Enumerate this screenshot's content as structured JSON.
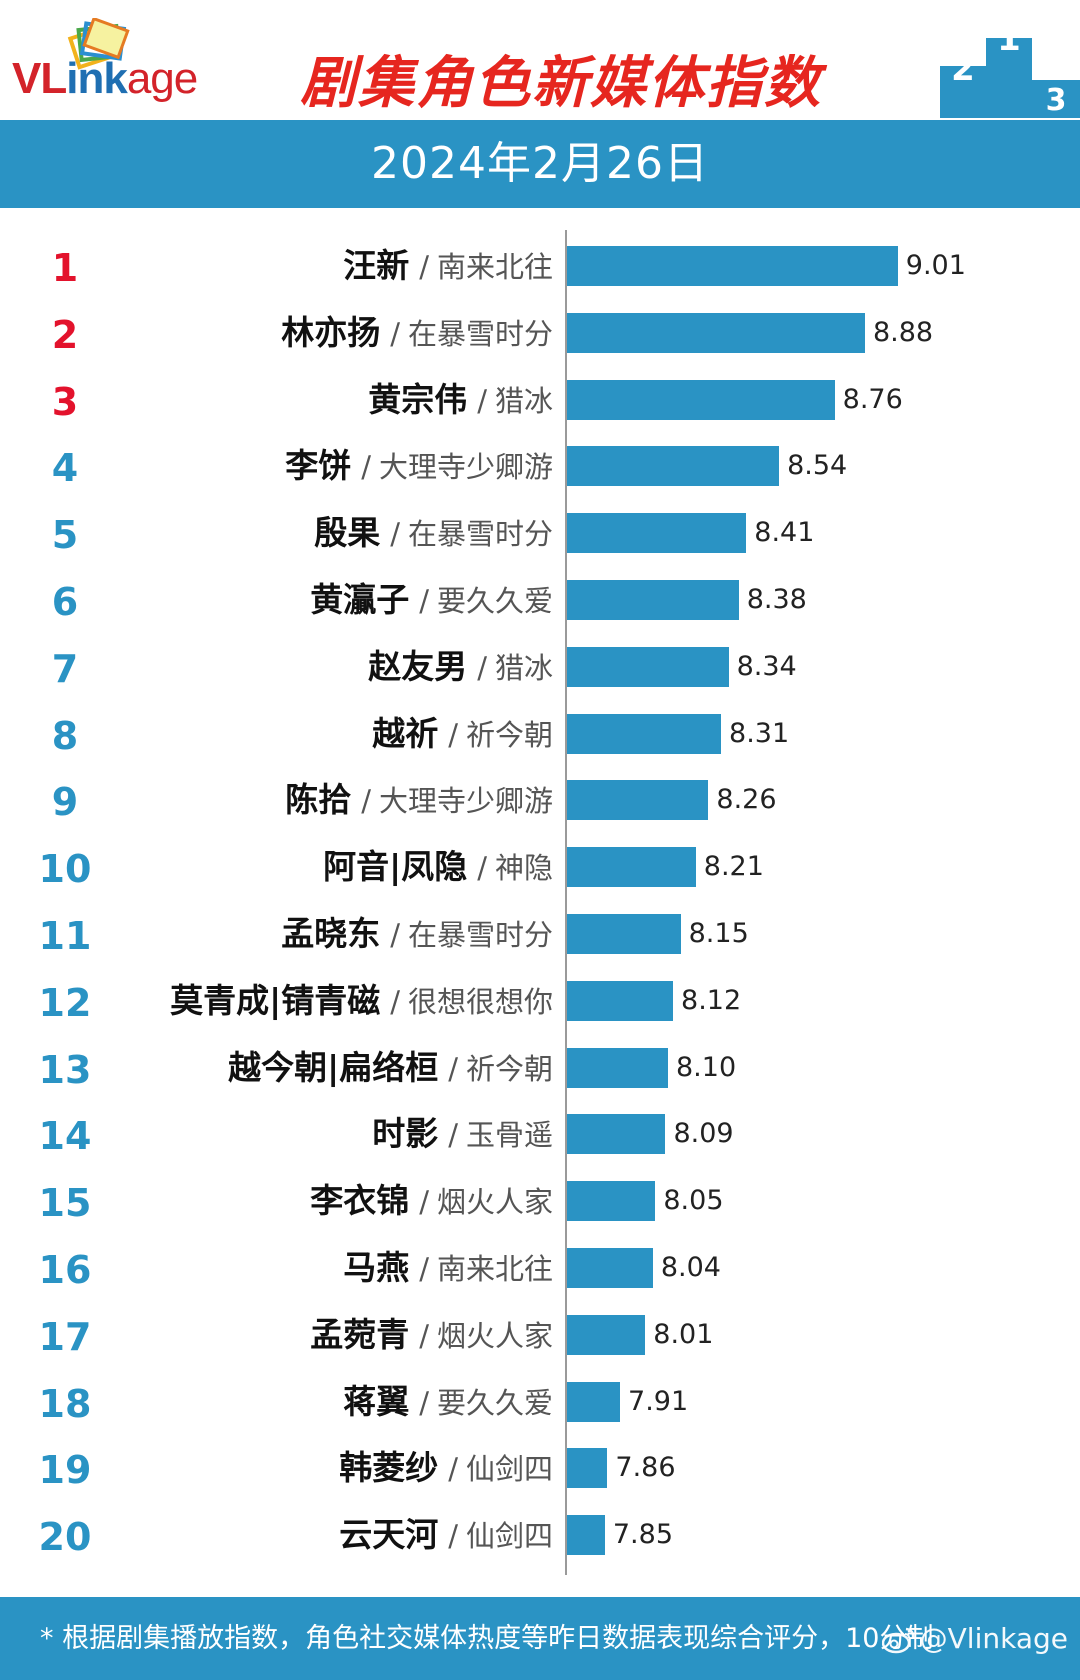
{
  "header": {
    "logo": {
      "text_vl": "VL",
      "text_ink": "ink",
      "text_age": "age",
      "icon": "colorful-frames-icon"
    },
    "title": "剧集角色新媒体指数",
    "podium": {
      "icon": "podium-icon",
      "labels": [
        "2",
        "1",
        "3"
      ]
    }
  },
  "date": "2024年2月26日",
  "colors": {
    "bar": "#2a93c4",
    "top_rank": "#e3122c",
    "rank": "#2a93c4",
    "title": "#e6261f"
  },
  "chart_data": {
    "type": "bar",
    "orientation": "horizontal",
    "title": "剧集角色新媒体指数",
    "subtitle": "2024年2月26日",
    "separator": "/",
    "xlim": [
      7.7,
      9.1
    ],
    "grid": false,
    "rows": [
      {
        "rank": "1",
        "character": "汪新",
        "drama": "南来北往",
        "value": 9.01,
        "label": "9.01"
      },
      {
        "rank": "2",
        "character": "林亦扬",
        "drama": "在暴雪时分",
        "value": 8.88,
        "label": "8.88"
      },
      {
        "rank": "3",
        "character": "黄宗伟",
        "drama": "猎冰",
        "value": 8.76,
        "label": "8.76"
      },
      {
        "rank": "4",
        "character": "李饼",
        "drama": "大理寺少卿游",
        "value": 8.54,
        "label": "8.54"
      },
      {
        "rank": "5",
        "character": "殷果",
        "drama": "在暴雪时分",
        "value": 8.41,
        "label": "8.41"
      },
      {
        "rank": "6",
        "character": "黄灜子",
        "drama": "要久久爱",
        "value": 8.38,
        "label": "8.38"
      },
      {
        "rank": "7",
        "character": "赵友男",
        "drama": "猎冰",
        "value": 8.34,
        "label": "8.34"
      },
      {
        "rank": "8",
        "character": "越祈",
        "drama": "祈今朝",
        "value": 8.31,
        "label": "8.31"
      },
      {
        "rank": "9",
        "character": "陈拾",
        "drama": "大理寺少卿游",
        "value": 8.26,
        "label": "8.26"
      },
      {
        "rank": "10",
        "character": "阿音|凤隐",
        "drama": "神隐",
        "value": 8.21,
        "label": "8.21"
      },
      {
        "rank": "11",
        "character": "孟晓东",
        "drama": "在暴雪时分",
        "value": 8.15,
        "label": "8.15"
      },
      {
        "rank": "12",
        "character": "莫青成|锖青磁",
        "drama": "很想很想你",
        "value": 8.12,
        "label": "8.12"
      },
      {
        "rank": "13",
        "character": "越今朝|扁络桓",
        "drama": "祈今朝",
        "value": 8.1,
        "label": "8.10"
      },
      {
        "rank": "14",
        "character": "时影",
        "drama": "玉骨遥",
        "value": 8.09,
        "label": "8.09"
      },
      {
        "rank": "15",
        "character": "李衣锦",
        "drama": "烟火人家",
        "value": 8.05,
        "label": "8.05"
      },
      {
        "rank": "16",
        "character": "马燕",
        "drama": "南来北往",
        "value": 8.04,
        "label": "8.04"
      },
      {
        "rank": "17",
        "character": "孟菀青",
        "drama": "烟火人家",
        "value": 8.01,
        "label": "8.01"
      },
      {
        "rank": "18",
        "character": "蒋翼",
        "drama": "要久久爱",
        "value": 7.91,
        "label": "7.91"
      },
      {
        "rank": "19",
        "character": "韩菱纱",
        "drama": "仙剑四",
        "value": 7.86,
        "label": "7.86"
      },
      {
        "rank": "20",
        "character": "云天河",
        "drama": "仙剑四",
        "value": 7.85,
        "label": "7.85"
      }
    ]
  },
  "footer": {
    "note": "* 根据剧集播放指数，角色社交媒体热度等昨日数据表现综合评分，10分制",
    "watermark": "@Vlinkage",
    "watermark_icon": "weibo-icon"
  }
}
